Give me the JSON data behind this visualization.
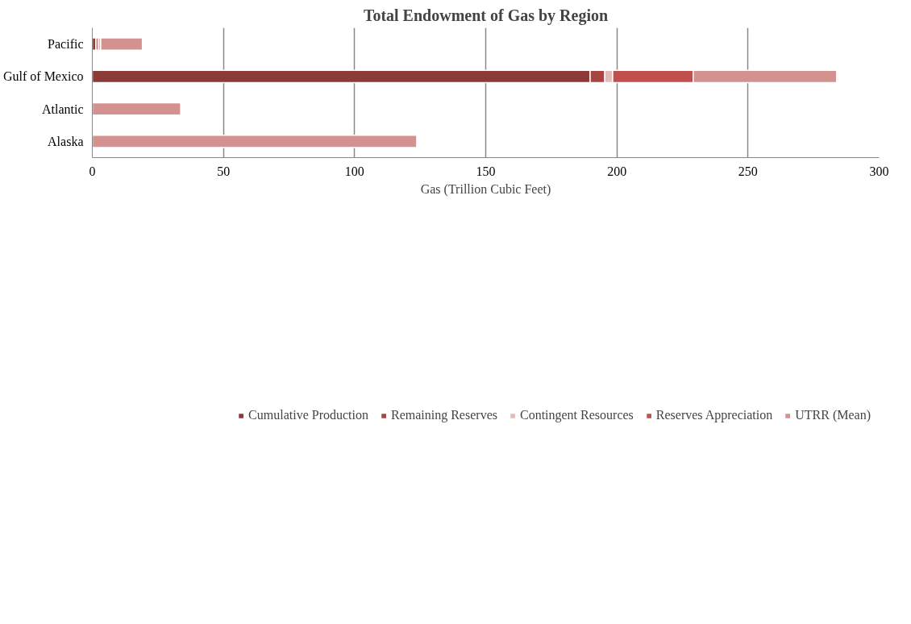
{
  "chart_data": {
    "type": "bar",
    "orientation": "horizontal",
    "stacked": true,
    "title": "Total Endowment of Gas by Region",
    "xlabel": "Gas (Trillion Cubic Feet)",
    "categories": [
      "Pacific",
      "Gulf of Mexico",
      "Atlantic",
      "Alaska"
    ],
    "series": [
      {
        "name": "Cumulative Production",
        "color": "#8b3a36",
        "values": [
          1.4,
          189.8,
          0,
          0
        ]
      },
      {
        "name": "Remaining Reserves",
        "color": "#a84442",
        "values": [
          0.8,
          5.6,
          0,
          0
        ]
      },
      {
        "name": "Contingent Resources",
        "color": "#e4bbbb",
        "values": [
          1.0,
          3.0,
          0,
          0
        ]
      },
      {
        "name": "Reserves Appreciation",
        "color": "#c0504d",
        "values": [
          0,
          30.7,
          0,
          0
        ]
      },
      {
        "name": "UTRR (Mean)",
        "color": "#d39290",
        "values": [
          15.9,
          54.7,
          33.7,
          123.7
        ]
      }
    ],
    "xlim": [
      0,
      300
    ],
    "xticks": [
      0,
      50,
      100,
      150,
      200,
      250,
      300
    ],
    "grid": "x",
    "legend": "bottom"
  }
}
